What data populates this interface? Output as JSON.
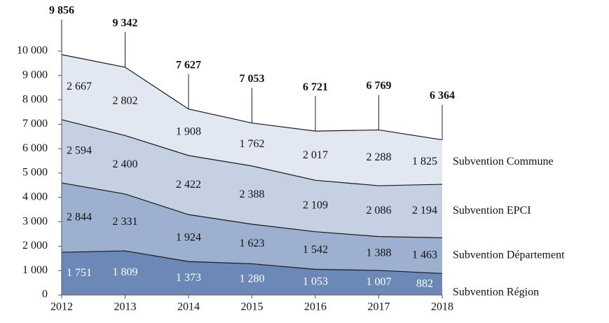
{
  "chart_data": {
    "type": "stacked_area",
    "categories": [
      "2012",
      "2013",
      "2014",
      "2015",
      "2016",
      "2017",
      "2018"
    ],
    "series": [
      {
        "name": "Subvention Région",
        "color": "#6b88b6",
        "label_color": "#ffffff",
        "values": [
          1751,
          1809,
          1373,
          1280,
          1053,
          1007,
          882
        ],
        "value_labels": [
          "1 751",
          "1 809",
          "1 373",
          "1 280",
          "1 053",
          "1 007",
          "882"
        ]
      },
      {
        "name": "Subvention Département",
        "color": "#9eb0cf",
        "label_color": "#111111",
        "values": [
          2844,
          2331,
          1924,
          1623,
          1542,
          1388,
          1463
        ],
        "value_labels": [
          "2 844",
          "2 331",
          "1 924",
          "1 623",
          "1 542",
          "1 388",
          "1 463"
        ]
      },
      {
        "name": "Subvention EPCI",
        "color": "#c5d0e3",
        "label_color": "#111111",
        "values": [
          2594,
          2400,
          2422,
          2388,
          2109,
          2086,
          2194
        ],
        "value_labels": [
          "2 594",
          "2 400",
          "2 422",
          "2 388",
          "2 109",
          "2 086",
          "2 194"
        ]
      },
      {
        "name": "Subvention Commune",
        "color": "#e2e8f1",
        "label_color": "#111111",
        "values": [
          2667,
          2802,
          1908,
          1762,
          2017,
          2288,
          1825
        ],
        "value_labels": [
          "2 667",
          "2 802",
          "1 908",
          "1 762",
          "2 017",
          "2 288",
          "1 825"
        ]
      }
    ],
    "totals": [
      9856,
      9342,
      7627,
      7053,
      6721,
      6769,
      6364
    ],
    "total_labels": [
      "9 856",
      "9 342",
      "7 627",
      "7 053",
      "6 721",
      "6 769",
      "6 364"
    ],
    "ylim": [
      0,
      10000
    ],
    "yticks": [
      0,
      {
        "value": 1000,
        "label": "1 000"
      },
      {
        "value": 2000,
        "label": "2 000"
      },
      {
        "value": 3000,
        "label": "3 000"
      },
      {
        "value": 4000,
        "label": "4 000"
      },
      {
        "value": 5000,
        "label": "5 000"
      },
      {
        "value": 6000,
        "label": "6 000"
      },
      {
        "value": 7000,
        "label": "7 000"
      },
      {
        "value": 8000,
        "label": "8 000"
      },
      {
        "value": 9000,
        "label": "9 000"
      },
      {
        "value": 10000,
        "label": "10 000"
      }
    ],
    "grid": false
  }
}
